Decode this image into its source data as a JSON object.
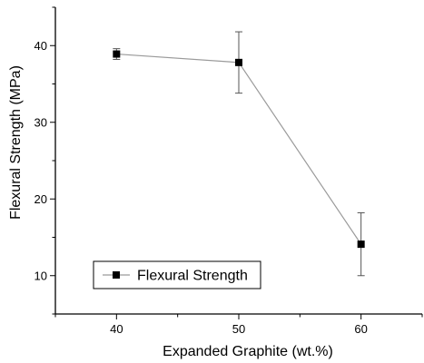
{
  "chart_data": {
    "type": "line",
    "title": "",
    "xlabel": "Expanded Graphite (wt.%)",
    "ylabel": "Flexural Strength (MPa)",
    "xlim": [
      35,
      65
    ],
    "ylim": [
      5,
      45
    ],
    "x_ticks": [
      40,
      50,
      60
    ],
    "y_ticks": [
      10,
      20,
      30,
      40
    ],
    "grid": false,
    "legend_position": "bottom-left",
    "series": [
      {
        "name": "Flexural Strength",
        "marker": "square",
        "color": "#000000",
        "line_color": "#9a9a9a",
        "x": [
          40,
          50,
          60
        ],
        "y": [
          38.9,
          37.8,
          14.1
        ],
        "error": [
          0.7,
          4.0,
          4.1
        ]
      }
    ]
  }
}
